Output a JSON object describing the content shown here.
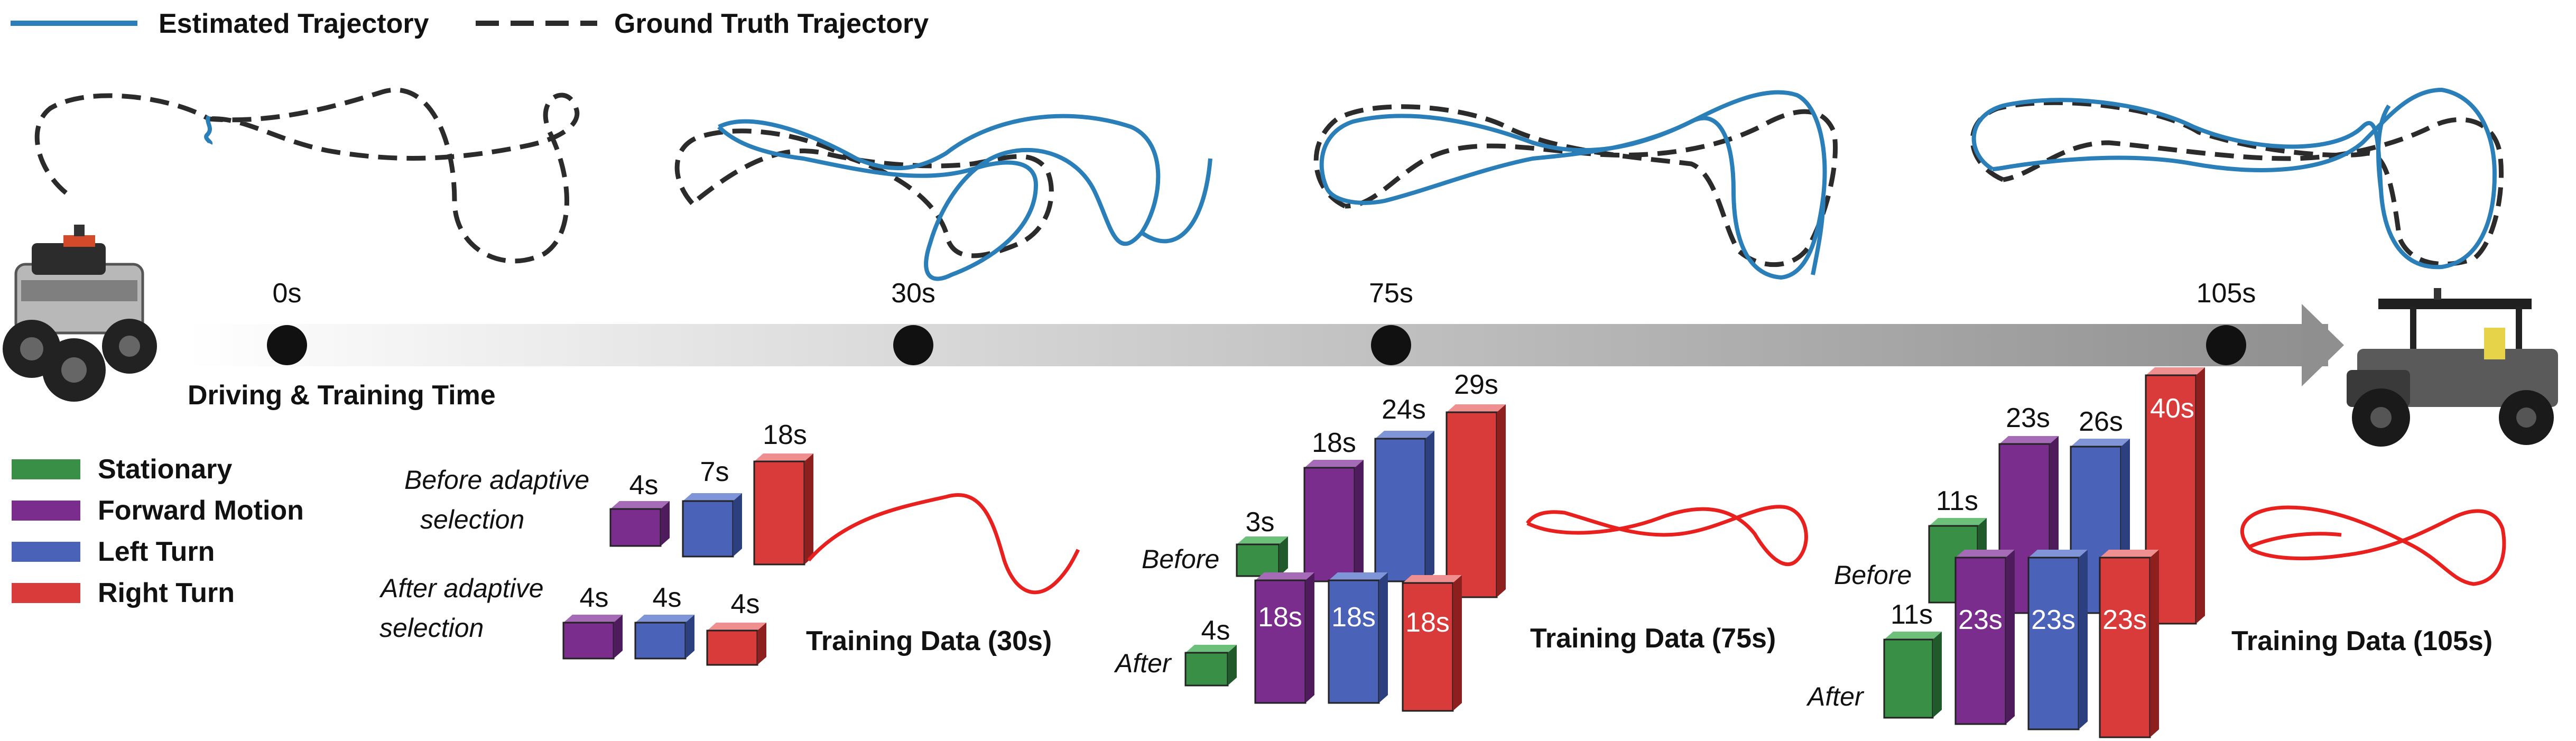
{
  "legend_top": {
    "estimated": "Estimated Trajectory",
    "ground_truth": "Ground Truth Trajectory"
  },
  "legend_classes": [
    {
      "label": "Stationary",
      "color": "#3a8f46"
    },
    {
      "label": "Forward Motion",
      "color": "#7b2d8e"
    },
    {
      "label": "Left Turn",
      "color": "#4a63b8"
    },
    {
      "label": "Right Turn",
      "color": "#d93a3a"
    }
  ],
  "timeline": {
    "axis_label": "Driving & Training Time",
    "marks": [
      "0s",
      "30s",
      "75s",
      "105s"
    ]
  },
  "stage_30": {
    "before_label_1": "Before adaptive",
    "before_label_2": "selection",
    "after_label_1": "After adaptive",
    "after_label_2": "selection",
    "before_values": [
      "4s",
      "7s",
      "18s"
    ],
    "after_values": [
      "4s",
      "4s",
      "4s"
    ],
    "caption": "Training Data (30s)"
  },
  "stage_75": {
    "before_label": "Before",
    "after_label": "After",
    "before_values": [
      "3s",
      "18s",
      "24s",
      "29s"
    ],
    "after_values": [
      "4s",
      "18s",
      "18s",
      "18s"
    ],
    "caption": "Training Data (75s)"
  },
  "stage_105": {
    "before_label": "Before",
    "after_label": "After",
    "before_values": [
      "11s",
      "23s",
      "26s",
      "40s"
    ],
    "after_values": [
      "11s",
      "23s",
      "23s",
      "23s"
    ],
    "caption": "Training Data (105s)"
  },
  "colors": {
    "estimated": "#2a7fb8",
    "ground_truth": "#2b2b2b",
    "training_curve": "#e8201e",
    "arrow": "#9a9a9a"
  },
  "icons": [
    "robot-rover-icon",
    "utility-vehicle-icon"
  ]
}
